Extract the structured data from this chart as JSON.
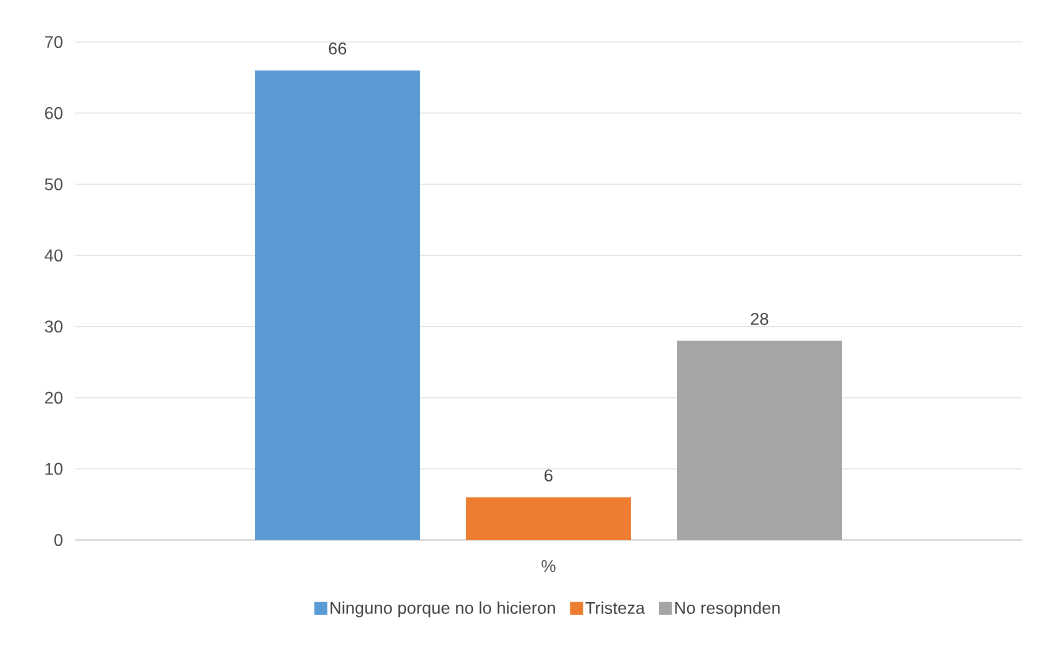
{
  "chart_data": {
    "type": "bar",
    "categories": [
      "%"
    ],
    "series": [
      {
        "name": "Ninguno porque no lo hicieron",
        "color": "#5b9bd5",
        "values": [
          66
        ]
      },
      {
        "name": "Tristeza",
        "color": "#ed7d31",
        "values": [
          6
        ]
      },
      {
        "name": "No resopnden",
        "color": "#a5a5a5",
        "values": [
          28
        ]
      }
    ],
    "ylim": [
      0,
      70
    ],
    "yticks": [
      0,
      10,
      20,
      30,
      40,
      50,
      60,
      70
    ],
    "grid": "y",
    "legend": "bottom",
    "data_labels": true
  }
}
